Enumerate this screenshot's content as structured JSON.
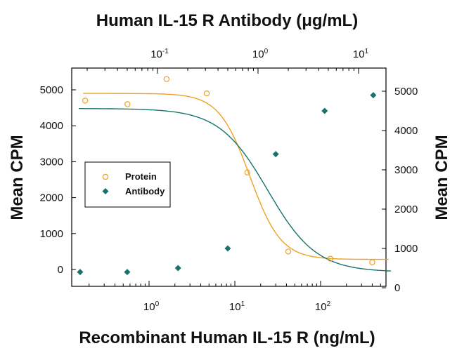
{
  "chart_data": {
    "type": "scatter",
    "title": "Human IL-15 R Antibody (μg/mL)",
    "xlabel": "Recombinant Human IL-15 R (ng/mL)",
    "ylabel_left": "Mean CPM",
    "ylabel_right": "Mean CPM",
    "x_scale": "log",
    "x_bottom_tick_labels": [
      {
        "base": "10",
        "exp": "0"
      },
      {
        "base": "10",
        "exp": "1"
      },
      {
        "base": "10",
        "exp": "2"
      }
    ],
    "x_top_tick_labels": [
      {
        "base": "10",
        "exp": "-1"
      },
      {
        "base": "10",
        "exp": "0"
      },
      {
        "base": "10",
        "exp": "1"
      }
    ],
    "y_left_ticks": [
      "0",
      "1000",
      "2000",
      "3000",
      "4000",
      "5000"
    ],
    "y_right_ticks": [
      "0",
      "1000",
      "2000",
      "3000",
      "4000",
      "5000"
    ],
    "series": [
      {
        "name": "Protein",
        "axis": "bottom-left",
        "marker": "open-circle",
        "color": "#F0A020",
        "x": [
          0.18,
          0.56,
          1.6,
          4.7,
          14,
          42,
          130,
          400
        ],
        "y": [
          4700,
          4600,
          5300,
          4900,
          2700,
          500,
          300,
          200
        ]
      },
      {
        "name": "Antibody",
        "axis": "top-right",
        "marker": "filled-diamond",
        "color": "#17736D",
        "x": [
          0.017,
          0.05,
          0.16,
          0.5,
          1.5,
          4.6,
          14
        ],
        "y": [
          400,
          400,
          500,
          1000,
          3400,
          4500,
          4900
        ]
      }
    ],
    "legend": {
      "position": "middle-left",
      "entries": [
        "Protein",
        "Antibody"
      ]
    },
    "grid": false
  }
}
